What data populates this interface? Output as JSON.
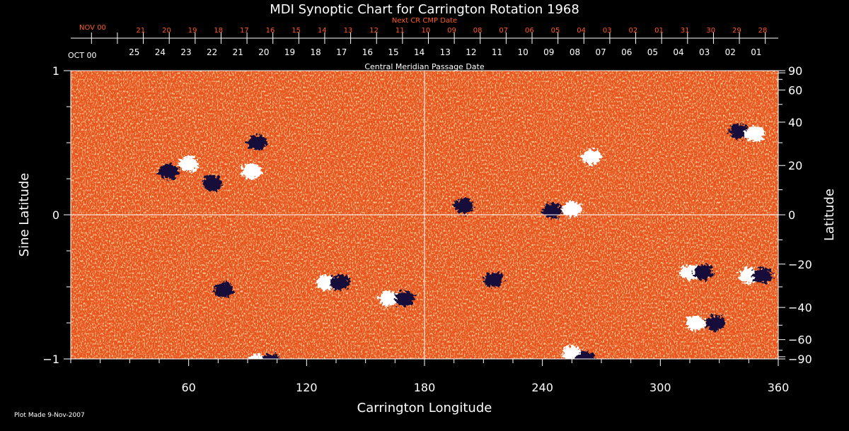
{
  "chart_data": {
    "type": "heatmap",
    "title": "MDI Synoptic Chart for Carrington Rotation 1968",
    "xlabel": "Carrington Longitude",
    "ylabel_left": "Sine Latitude",
    "ylabel_right": "Latitude",
    "xlim": [
      0,
      360
    ],
    "ylim": [
      -1,
      1
    ],
    "x_ticks": [
      60,
      120,
      180,
      240,
      300,
      360
    ],
    "y_ticks_left": [
      {
        "value": 1,
        "label": "1"
      },
      {
        "value": 0,
        "label": "0"
      },
      {
        "value": -1,
        "label": "−1"
      }
    ],
    "y_ticks_right": [
      90,
      60,
      40,
      20,
      0,
      -20,
      -40,
      -60,
      -90
    ],
    "grid": {
      "x": [
        180
      ],
      "y": [
        0
      ]
    },
    "top_axis_title": "Central Meridian Passage Date",
    "top_axis_month_labels": [
      "OCT 00"
    ],
    "top_axis_dates": [
      "25",
      "24",
      "23",
      "22",
      "21",
      "20",
      "19",
      "18",
      "17",
      "16",
      "15",
      "14",
      "13",
      "12",
      "11",
      "10",
      "09",
      "08",
      "07",
      "06",
      "05",
      "04",
      "03",
      "02",
      "01"
    ],
    "next_cr_title": "Next CR CMP Date",
    "next_cr_month_labels": [
      "NOV 00"
    ],
    "next_cr_dates": [
      "21",
      "20",
      "19",
      "18",
      "17",
      "16",
      "15",
      "14",
      "13",
      "12",
      "11",
      "10",
      "09",
      "08",
      "07",
      "06",
      "05",
      "04",
      "03",
      "02",
      "01",
      "31",
      "30",
      "29",
      "28"
    ],
    "footer": "Plot Made  9-Nov-2007",
    "colors": {
      "background": "#000000",
      "text": "#ffffff",
      "next_cr_text": "#ff5a1e",
      "field_base": "#e8541c",
      "positive_polarity": "#ffffff",
      "negative_polarity": "#14103a"
    },
    "magnetic_regions": [
      {
        "lon": 60,
        "sinlat": 0.35,
        "polarity": "positive"
      },
      {
        "lon": 50,
        "sinlat": 0.3,
        "polarity": "negative"
      },
      {
        "lon": 72,
        "sinlat": 0.22,
        "polarity": "negative"
      },
      {
        "lon": 92,
        "sinlat": 0.3,
        "polarity": "positive"
      },
      {
        "lon": 95,
        "sinlat": 0.5,
        "polarity": "negative"
      },
      {
        "lon": 130,
        "sinlat": -0.47,
        "polarity": "positive"
      },
      {
        "lon": 137,
        "sinlat": -0.47,
        "polarity": "negative"
      },
      {
        "lon": 162,
        "sinlat": -0.58,
        "polarity": "positive"
      },
      {
        "lon": 170,
        "sinlat": -0.58,
        "polarity": "negative"
      },
      {
        "lon": 95,
        "sinlat": -1.02,
        "polarity": "positive"
      },
      {
        "lon": 102,
        "sinlat": -1.02,
        "polarity": "negative"
      },
      {
        "lon": 78,
        "sinlat": -0.52,
        "polarity": "negative"
      },
      {
        "lon": 200,
        "sinlat": 0.06,
        "polarity": "negative"
      },
      {
        "lon": 255,
        "sinlat": 0.04,
        "polarity": "positive"
      },
      {
        "lon": 245,
        "sinlat": 0.03,
        "polarity": "negative"
      },
      {
        "lon": 265,
        "sinlat": 0.4,
        "polarity": "positive"
      },
      {
        "lon": 215,
        "sinlat": -0.45,
        "polarity": "negative"
      },
      {
        "lon": 255,
        "sinlat": -0.96,
        "polarity": "positive"
      },
      {
        "lon": 262,
        "sinlat": -1.0,
        "polarity": "negative"
      },
      {
        "lon": 315,
        "sinlat": -0.4,
        "polarity": "positive"
      },
      {
        "lon": 322,
        "sinlat": -0.4,
        "polarity": "negative"
      },
      {
        "lon": 318,
        "sinlat": -0.75,
        "polarity": "positive"
      },
      {
        "lon": 328,
        "sinlat": -0.75,
        "polarity": "negative"
      },
      {
        "lon": 345,
        "sinlat": -0.42,
        "polarity": "positive"
      },
      {
        "lon": 352,
        "sinlat": -0.42,
        "polarity": "negative"
      },
      {
        "lon": 340,
        "sinlat": 0.58,
        "polarity": "negative"
      },
      {
        "lon": 348,
        "sinlat": 0.56,
        "polarity": "positive"
      }
    ]
  }
}
